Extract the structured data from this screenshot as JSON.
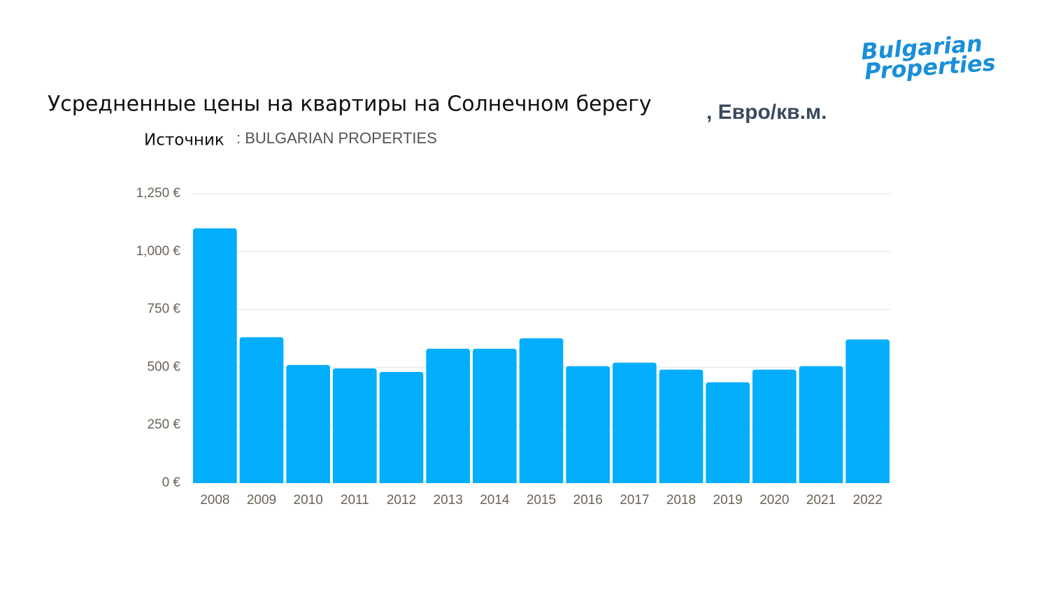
{
  "logo": [
    "Bulgarian",
    "Properties"
  ],
  "chart_data": {
    "type": "bar",
    "title": "Усредненные цены на квартиры на Солнечном берегу",
    "title_unit": ", Евро/кв.м.",
    "source_label": "Источник",
    "source": ": BULGARIAN PROPERTIES",
    "categories": [
      "2008",
      "2009",
      "2010",
      "2011",
      "2012",
      "2013",
      "2014",
      "2015",
      "2016",
      "2017",
      "2018",
      "2019",
      "2020",
      "2021",
      "2022"
    ],
    "values": [
      1100,
      630,
      510,
      495,
      480,
      580,
      580,
      625,
      505,
      520,
      490,
      435,
      490,
      505,
      620
    ],
    "color": "#03aefc",
    "ylim": [
      0,
      1250
    ],
    "yticks": [
      {
        "value": 0,
        "label": "0 €"
      },
      {
        "value": 250,
        "label": "250 €"
      },
      {
        "value": 500,
        "label": "500 €"
      },
      {
        "value": 750,
        "label": "750 €"
      },
      {
        "value": 1000,
        "label": "1,000 €"
      },
      {
        "value": 1250,
        "label": "1,250 €"
      }
    ],
    "grid": true
  }
}
